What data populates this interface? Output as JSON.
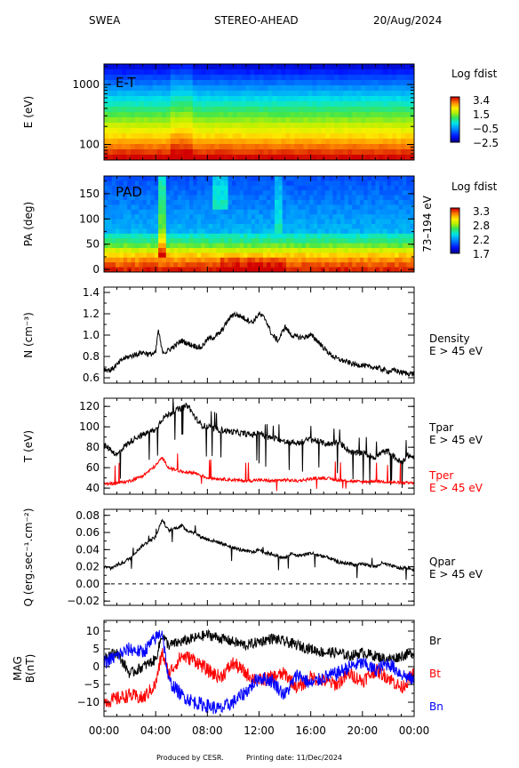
{
  "header": {
    "instrument": "SWEA",
    "spacecraft": "STEREO-AHEAD",
    "date": "20/Aug/2024"
  },
  "footer": {
    "produced_by": "Produced by CESR.",
    "printing_date": "Printing date: 11/Dec/2024"
  },
  "colors": {
    "black": "#000000",
    "red": "#ff0000",
    "blue": "#0000ff"
  },
  "chart_data": [
    {
      "type": "heatmap",
      "panel_label": "E-T",
      "ylabel": "E (eV)",
      "yscale": "log",
      "ylim": [
        55,
        2200
      ],
      "yticks": [
        100,
        1000
      ],
      "xlim": [
        0,
        24
      ],
      "colorbar": {
        "title": "Log fdist",
        "ticks": [
          "3.4",
          "1.5",
          "−0.5",
          "−2.5"
        ],
        "range": [
          -2.5,
          3.4
        ]
      }
    },
    {
      "type": "heatmap",
      "panel_label": "PAD",
      "ylabel": "PA (deg)",
      "ylim": [
        -5,
        185
      ],
      "yticks": [
        0,
        50,
        100,
        150
      ],
      "xlim": [
        0,
        24
      ],
      "side_label": "73–194 eV",
      "colorbar": {
        "title": "Log fdist",
        "ticks": [
          "3.3",
          "2.8",
          "2.2",
          "1.7"
        ],
        "range": [
          1.7,
          3.3
        ]
      }
    },
    {
      "type": "line",
      "ylabel": "N (cm⁻³)",
      "ylim": [
        0.55,
        1.45
      ],
      "yticks": [
        0.6,
        0.8,
        1.0,
        1.2,
        1.4
      ],
      "ytick_labels": [
        "0.6",
        "0.8",
        "1.0",
        "1.2",
        "1.4"
      ],
      "xlim": [
        0,
        24
      ],
      "series": [
        {
          "label1": "Density",
          "label2": "E > 45 eV",
          "color": "#000000",
          "x": [
            0,
            0.5,
            1,
            1.5,
            2,
            2.5,
            3,
            3.5,
            4,
            4.2,
            4.5,
            4.8,
            5,
            5.5,
            6,
            6.5,
            7,
            7.5,
            8,
            8.5,
            9,
            9.5,
            10,
            10.5,
            11,
            11.5,
            12,
            12.5,
            13,
            13.5,
            14,
            14.5,
            15,
            15.5,
            16,
            16.5,
            17,
            17.5,
            18,
            18.5,
            19,
            19.5,
            20,
            20.5,
            21,
            21.5,
            22,
            22.5,
            23,
            23.5,
            24
          ],
          "y": [
            0.68,
            0.67,
            0.72,
            0.78,
            0.8,
            0.82,
            0.84,
            0.82,
            0.83,
            1.05,
            0.85,
            0.84,
            0.86,
            0.9,
            0.95,
            0.92,
            0.9,
            0.88,
            0.96,
            0.98,
            1.02,
            1.12,
            1.2,
            1.18,
            1.15,
            1.12,
            1.2,
            1.15,
            1.0,
            0.95,
            1.08,
            1.0,
            0.98,
            0.98,
            1.0,
            0.95,
            0.88,
            0.82,
            0.78,
            0.76,
            0.74,
            0.72,
            0.72,
            0.7,
            0.7,
            0.68,
            0.66,
            0.67,
            0.65,
            0.64,
            0.64
          ]
        }
      ]
    },
    {
      "type": "line",
      "ylabel": "T (eV)",
      "ylim": [
        34,
        128
      ],
      "yticks": [
        40,
        60,
        80,
        100,
        120
      ],
      "xlim": [
        0,
        24
      ],
      "series": [
        {
          "label1": "Tpar",
          "label2": "E > 45 eV",
          "color": "#000000",
          "x": [
            0,
            0.5,
            1,
            1.5,
            2,
            2.5,
            3,
            3.5,
            4,
            4.5,
            5,
            5.5,
            6,
            6.5,
            7,
            7.5,
            8,
            8.5,
            9,
            9.5,
            10,
            10.5,
            11,
            11.5,
            12,
            12.5,
            13,
            13.5,
            14,
            14.5,
            15,
            15.5,
            16,
            16.5,
            17,
            17.5,
            18,
            18.5,
            19,
            19.5,
            20,
            20.5,
            21,
            21.5,
            22,
            22.5,
            23,
            23.5,
            24
          ],
          "y": [
            82,
            78,
            72,
            80,
            85,
            90,
            92,
            95,
            97,
            108,
            112,
            116,
            118,
            121,
            110,
            102,
            100,
            98,
            97,
            96,
            95,
            94,
            93,
            92,
            95,
            90,
            89,
            88,
            85,
            85,
            84,
            86,
            88,
            86,
            84,
            83,
            85,
            82,
            76,
            74,
            75,
            72,
            70,
            75,
            76,
            70,
            65,
            72,
            70
          ]
        },
        {
          "label1": "Tper",
          "label2": "E > 45 eV",
          "color": "#ff0000",
          "x": [
            0,
            1,
            2,
            3,
            4,
            4.5,
            5,
            5.5,
            6,
            7,
            8,
            9,
            10,
            11,
            12,
            13,
            14,
            15,
            16,
            17,
            18,
            19,
            20,
            21,
            22,
            23,
            24
          ],
          "y": [
            44,
            45,
            47,
            52,
            62,
            70,
            60,
            58,
            56,
            55,
            50,
            49,
            48,
            47,
            48,
            47,
            48,
            47,
            49,
            50,
            48,
            47,
            46,
            47,
            46,
            45,
            45
          ]
        }
      ]
    },
    {
      "type": "line",
      "ylabel": "Q (erg.sec⁻¹.cm⁻²)",
      "ylim": [
        -0.025,
        0.087
      ],
      "yticks": [
        -0.02,
        0.0,
        0.02,
        0.04,
        0.06,
        0.08
      ],
      "ytick_labels": [
        "−0.02",
        "0.00",
        "0.02",
        "0.04",
        "0.06",
        "0.08"
      ],
      "xlim": [
        0,
        24
      ],
      "reference_line": 0.0,
      "series": [
        {
          "label1": "Qpar",
          "label2": "E > 45 eV",
          "color": "#000000",
          "x": [
            0,
            0.5,
            1,
            1.5,
            2,
            2.5,
            3,
            3.5,
            4,
            4.5,
            5,
            5.5,
            6,
            6.5,
            7,
            7.5,
            8,
            8.5,
            9,
            9.5,
            10,
            10.5,
            11,
            11.5,
            12,
            12.5,
            13,
            13.5,
            14,
            14.5,
            15,
            15.5,
            16,
            16.5,
            17,
            17.5,
            18,
            18.5,
            19,
            19.5,
            20,
            20.5,
            21,
            21.5,
            22,
            22.5,
            23,
            23.5,
            24
          ],
          "y": [
            0.02,
            0.018,
            0.022,
            0.025,
            0.03,
            0.038,
            0.045,
            0.05,
            0.055,
            0.075,
            0.062,
            0.065,
            0.068,
            0.062,
            0.06,
            0.055,
            0.052,
            0.05,
            0.048,
            0.045,
            0.042,
            0.04,
            0.038,
            0.037,
            0.04,
            0.036,
            0.035,
            0.032,
            0.03,
            0.035,
            0.033,
            0.034,
            0.036,
            0.034,
            0.032,
            0.03,
            0.026,
            0.024,
            0.024,
            0.022,
            0.023,
            0.022,
            0.02,
            0.024,
            0.022,
            0.02,
            0.018,
            0.019,
            0.016
          ]
        }
      ]
    },
    {
      "type": "line",
      "ylabel": "MAG B(nT)",
      "ylim": [
        -14,
        13
      ],
      "yticks": [
        -10,
        -5,
        0,
        5,
        10
      ],
      "ytick_labels": [
        "−10",
        "−5",
        "0",
        "5",
        "10"
      ],
      "xlim": [
        0,
        24
      ],
      "xticks": [
        0,
        4,
        8,
        12,
        16,
        20,
        24
      ],
      "xtick_labels": [
        "00:00",
        "04:00",
        "08:00",
        "12:00",
        "16:00",
        "20:00",
        "00:00"
      ],
      "series": [
        {
          "label1": "Br",
          "color": "#000000",
          "x": [
            0,
            1,
            2,
            3,
            4,
            4.5,
            5,
            6,
            7,
            8,
            9,
            10,
            11,
            12,
            13,
            14,
            15,
            16,
            17,
            18,
            19,
            20,
            21,
            22,
            23,
            24
          ],
          "y": [
            3,
            4,
            -2,
            0,
            2,
            9,
            6,
            7,
            8,
            9,
            8,
            7,
            6,
            7,
            8,
            7,
            6,
            5,
            4,
            4,
            3,
            4,
            3,
            2,
            3,
            4
          ]
        },
        {
          "label1": "Bt",
          "color": "#ff0000",
          "x": [
            0,
            1,
            2,
            3,
            4,
            4.5,
            5,
            6,
            7,
            8,
            9,
            10,
            11,
            12,
            13,
            14,
            15,
            16,
            17,
            18,
            19,
            20,
            21,
            22,
            23,
            24
          ],
          "y": [
            -10,
            -9,
            -8,
            -9,
            -5,
            4,
            -2,
            3,
            2,
            -1,
            -3,
            1,
            -2,
            -4,
            -3,
            -2,
            -6,
            -3,
            -4,
            -5,
            -2,
            -4,
            -1,
            -3,
            -6,
            -2
          ]
        },
        {
          "label1": "Bn",
          "color": "#0000ff",
          "x": [
            0,
            1,
            2,
            3,
            4,
            4.5,
            5,
            6,
            7,
            8,
            9,
            10,
            11,
            12,
            13,
            14,
            15,
            16,
            17,
            18,
            19,
            20,
            21,
            22,
            23,
            24
          ],
          "y": [
            1,
            3,
            5,
            4,
            8,
            10,
            -4,
            -8,
            -10,
            -11,
            -12,
            -10,
            -7,
            -3,
            -4,
            -8,
            -2,
            -5,
            -3,
            -2,
            0,
            1,
            -1,
            1,
            -2,
            -4
          ]
        }
      ]
    }
  ]
}
